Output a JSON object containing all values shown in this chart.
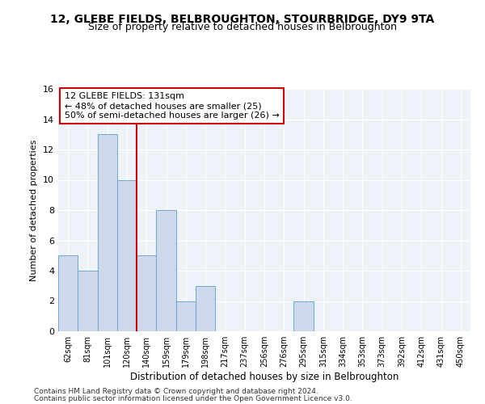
{
  "title_line1": "12, GLEBE FIELDS, BELBROUGHTON, STOURBRIDGE, DY9 9TA",
  "title_line2": "Size of property relative to detached houses in Belbroughton",
  "xlabel": "Distribution of detached houses by size in Belbroughton",
  "ylabel": "Number of detached properties",
  "categories": [
    "62sqm",
    "81sqm",
    "101sqm",
    "120sqm",
    "140sqm",
    "159sqm",
    "179sqm",
    "198sqm",
    "217sqm",
    "237sqm",
    "256sqm",
    "276sqm",
    "295sqm",
    "315sqm",
    "334sqm",
    "353sqm",
    "373sqm",
    "392sqm",
    "412sqm",
    "431sqm",
    "450sqm"
  ],
  "values": [
    5,
    4,
    13,
    10,
    5,
    8,
    2,
    3,
    0,
    0,
    0,
    0,
    2,
    0,
    0,
    0,
    0,
    0,
    0,
    0,
    0
  ],
  "bar_color": "#cdd9ea",
  "bar_edge_color": "#6fa8d0",
  "background_color": "#eef2f9",
  "grid_color": "#ffffff",
  "red_line_x": 3.5,
  "red_line_color": "#cc0000",
  "annotation_text": "12 GLEBE FIELDS: 131sqm\n← 48% of detached houses are smaller (25)\n50% of semi-detached houses are larger (26) →",
  "annotation_box_facecolor": "#ffffff",
  "annotation_box_edgecolor": "#cc0000",
  "ylim": [
    0,
    16
  ],
  "yticks": [
    0,
    2,
    4,
    6,
    8,
    10,
    12,
    14,
    16
  ],
  "footer_line1": "Contains HM Land Registry data © Crown copyright and database right 2024.",
  "footer_line2": "Contains public sector information licensed under the Open Government Licence v3.0."
}
